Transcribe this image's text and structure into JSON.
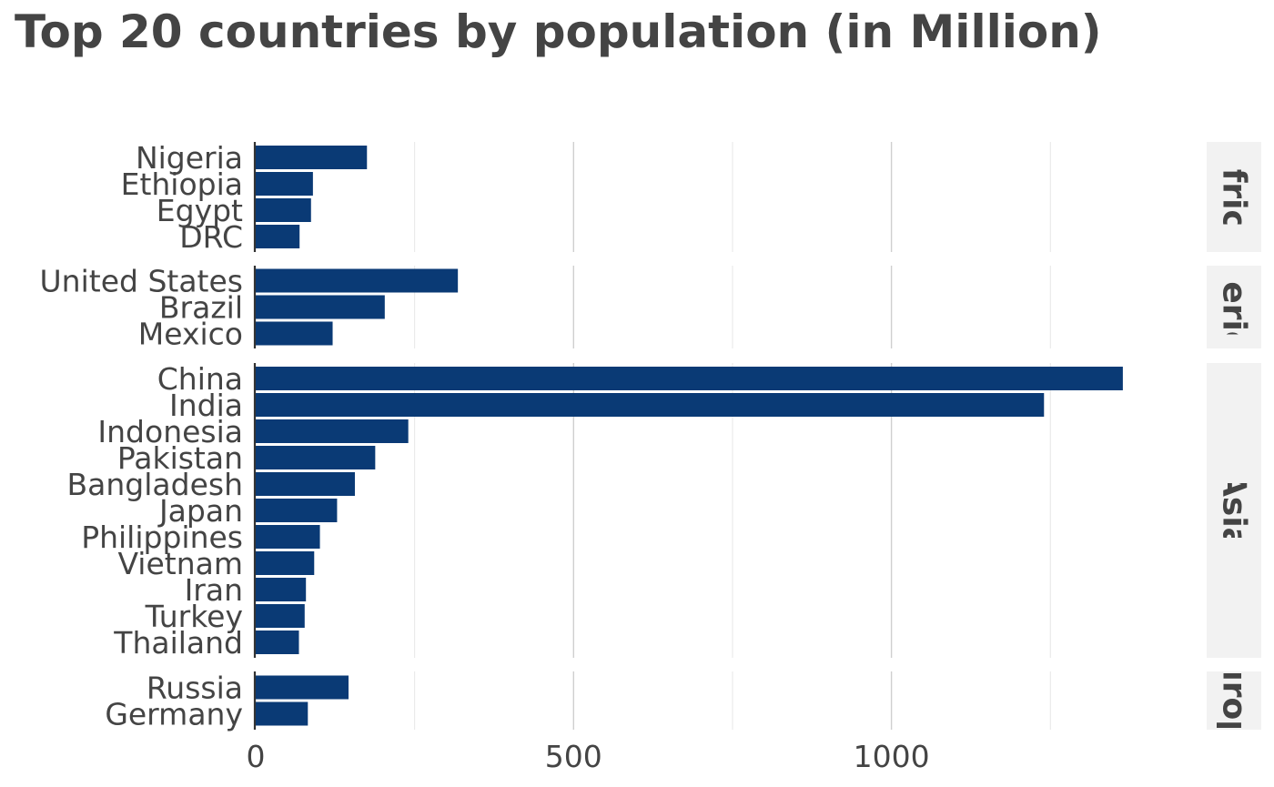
{
  "chart_data": {
    "type": "bar",
    "orientation": "horizontal",
    "title": "Top 20 countries by population (in Million)",
    "xlabel": "",
    "ylabel": "",
    "xlim": [
      0,
      1450
    ],
    "x_ticks": [
      "0",
      "500",
      "1000"
    ],
    "x_tick_values": [
      0,
      500,
      1000
    ],
    "x_minor_ticks": [
      250,
      750,
      1250
    ],
    "bar_color": "#0a3a75",
    "strip_color": "#f2f2f2",
    "grid": true,
    "facets": [
      {
        "name": "Africa",
        "strip_label": "Africa",
        "categories": [
          "Nigeria",
          "Ethiopia",
          "Egypt",
          "DRC"
        ],
        "values": [
          175,
          90,
          87,
          69
        ]
      },
      {
        "name": "Americas",
        "strip_label": "Americas",
        "categories": [
          "United States",
          "Brazil",
          "Mexico"
        ],
        "values": [
          318,
          203,
          121
        ]
      },
      {
        "name": "Asia",
        "strip_label": "Asia",
        "categories": [
          "China",
          "India",
          "Indonesia",
          "Pakistan",
          "Bangladesh",
          "Japan",
          "Philippines",
          "Vietnam",
          "Iran",
          "Turkey",
          "Thailand"
        ],
        "values": [
          1364,
          1240,
          240,
          188,
          156,
          128,
          101,
          92,
          79,
          77,
          68
        ]
      },
      {
        "name": "Europe",
        "strip_label": "Europe",
        "categories": [
          "Russia",
          "Germany"
        ],
        "values": [
          146,
          82
        ]
      }
    ]
  }
}
